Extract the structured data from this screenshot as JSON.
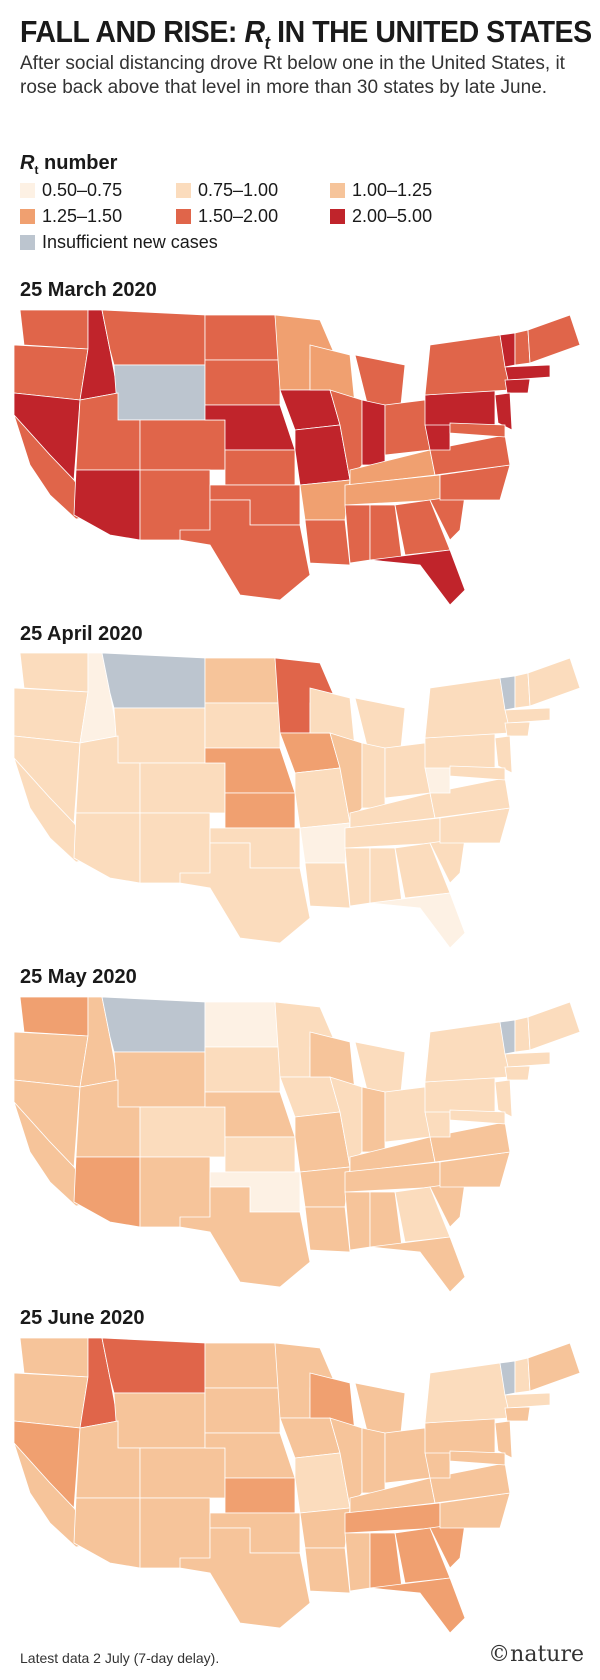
{
  "header": {
    "title_prefix": "FALL AND RISE:",
    "title_rt": "R",
    "title_rt_sub": "t",
    "title_suffix": "IN THE UNITED STATES",
    "subtitle": "After social distancing drove Rt below one in the United States, it rose back above that level in more than 30 states by late June."
  },
  "legend": {
    "title_r": "R",
    "title_sub": "t",
    "title_rest": " number",
    "items": [
      {
        "label": "0.50–0.75",
        "color": "#fdf1e4"
      },
      {
        "label": "0.75–1.00",
        "color": "#fbdcbd"
      },
      {
        "label": "1.00–1.25",
        "color": "#f6c49a"
      },
      {
        "label": "1.25–1.50",
        "color": "#f0a070"
      },
      {
        "label": "1.50–2.00",
        "color": "#e0654a"
      },
      {
        "label": "2.00–5.00",
        "color": "#c0242b"
      },
      {
        "label": "Insufficient new cases",
        "color": "#bcc5cf"
      }
    ]
  },
  "maps": [
    {
      "title": "25 March 2020"
    },
    {
      "title": "25 April 2020"
    },
    {
      "title": "25 May 2020"
    },
    {
      "title": "25 June 2020"
    }
  ],
  "footer": "Latest data 2 July (7-day delay).",
  "logo": "©nature"
}
